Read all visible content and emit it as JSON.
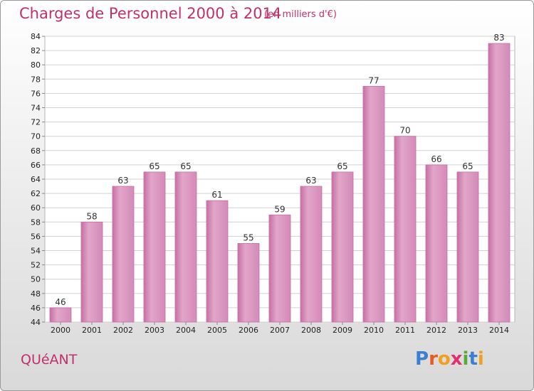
{
  "header": {
    "title": "Charges de Personnel 2000 à 2014",
    "subtitle": "(en milliers d'€)"
  },
  "footer": {
    "town": "QUéANT",
    "logo": [
      "P",
      "r",
      "o",
      "x",
      "i",
      "t",
      "i"
    ],
    "logo_colors": [
      "#3a7fd0",
      "#e85a20",
      "#f0a020",
      "#e03070",
      "#5aaa3a",
      "#3a7fd0",
      "#f0a020"
    ]
  },
  "colors": {
    "bar": "#d98ab8",
    "bar_edge": "#c56fa3",
    "text_accent": "#c0306a"
  },
  "chart_data": {
    "type": "bar",
    "categories": [
      "2000",
      "2001",
      "2002",
      "2003",
      "2004",
      "2005",
      "2006",
      "2007",
      "2008",
      "2009",
      "2010",
      "2011",
      "2012",
      "2013",
      "2014"
    ],
    "values": [
      46,
      58,
      63,
      65,
      65,
      61,
      55,
      59,
      63,
      65,
      77,
      70,
      66,
      65,
      83
    ],
    "ylim": [
      44,
      84
    ],
    "yticks": [
      44,
      46,
      48,
      50,
      52,
      54,
      56,
      58,
      60,
      62,
      64,
      66,
      68,
      70,
      72,
      74,
      76,
      78,
      80,
      82,
      84
    ],
    "grid": true,
    "xlabel": "",
    "ylabel": ""
  }
}
